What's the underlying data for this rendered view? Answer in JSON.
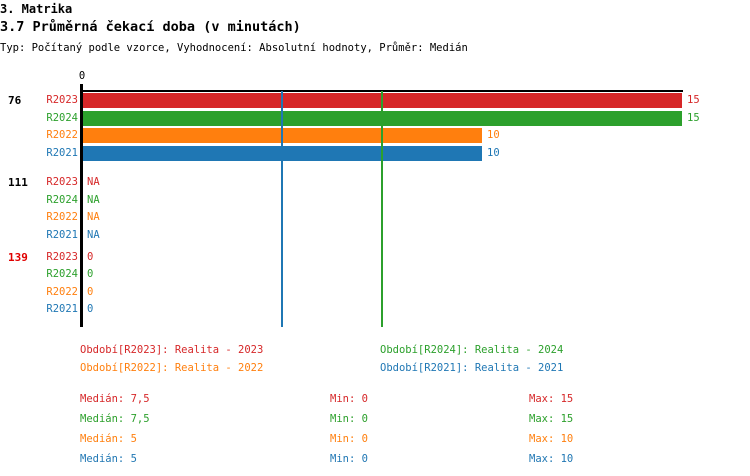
{
  "header": {
    "title": "3. Matrika",
    "subtitle": "3.7 Průměrná čekací doba (v minutách)",
    "meta": "Typ: Počítaný podle vzorce, Vyhodnocení: Absolutní hodnoty, Průměr: Medián"
  },
  "chart_data": {
    "type": "bar",
    "orientation": "horizontal",
    "x_axis": {
      "zero_label": "0",
      "min": 0,
      "max": 15,
      "grid": false
    },
    "series_order": [
      "R2023",
      "R2024",
      "R2022",
      "R2021"
    ],
    "series_colors": {
      "R2023": "#d62728",
      "R2024": "#2ca02c",
      "R2022": "#ff7f0e",
      "R2021": "#1f77b4"
    },
    "groups": [
      {
        "label": "76",
        "label_color": "#000000",
        "rows": [
          {
            "series": "R2023",
            "value": 15,
            "display": "15"
          },
          {
            "series": "R2024",
            "value": 15,
            "display": "15"
          },
          {
            "series": "R2022",
            "value": 10,
            "display": "10"
          },
          {
            "series": "R2021",
            "value": 10,
            "display": "10"
          }
        ]
      },
      {
        "label": "111",
        "label_color": "#000000",
        "rows": [
          {
            "series": "R2023",
            "value": null,
            "display": "NA"
          },
          {
            "series": "R2024",
            "value": null,
            "display": "NA"
          },
          {
            "series": "R2022",
            "value": null,
            "display": "NA"
          },
          {
            "series": "R2021",
            "value": null,
            "display": "NA"
          }
        ]
      },
      {
        "label": "139",
        "label_color": "#e00000",
        "rows": [
          {
            "series": "R2023",
            "value": 0,
            "display": "0"
          },
          {
            "series": "R2024",
            "value": 0,
            "display": "0"
          },
          {
            "series": "R2022",
            "value": 0,
            "display": "0"
          },
          {
            "series": "R2021",
            "value": 0,
            "display": "0"
          }
        ]
      }
    ],
    "reference_lines": [
      {
        "series": "R2024",
        "value": 7.5,
        "color": "#2ca02c"
      },
      {
        "series": "R2021",
        "value": 5,
        "color": "#1f77b4"
      }
    ],
    "legend": [
      {
        "series": "R2023",
        "text": "Období[R2023]: Realita - 2023",
        "color": "#d62728",
        "col": 0,
        "row": 0
      },
      {
        "series": "R2024",
        "text": "Období[R2024]: Realita - 2024",
        "color": "#2ca02c",
        "col": 1,
        "row": 0
      },
      {
        "series": "R2022",
        "text": "Období[R2022]: Realita - 2022",
        "color": "#ff7f0e",
        "col": 0,
        "row": 1
      },
      {
        "series": "R2021",
        "text": "Období[R2021]: Realita - 2021",
        "color": "#1f77b4",
        "col": 1,
        "row": 1
      }
    ],
    "stats_labels": {
      "median": "Medián",
      "min": "Min",
      "max": "Max"
    },
    "stats": [
      {
        "series": "R2023",
        "color": "#d62728",
        "median": "7,5",
        "min": "0",
        "max": "15"
      },
      {
        "series": "R2024",
        "color": "#2ca02c",
        "median": "7,5",
        "min": "0",
        "max": "15"
      },
      {
        "series": "R2022",
        "color": "#ff7f0e",
        "median": "5",
        "min": "0",
        "max": "10"
      },
      {
        "series": "R2021",
        "color": "#1f77b4",
        "median": "5",
        "min": "0",
        "max": "10"
      }
    ]
  }
}
